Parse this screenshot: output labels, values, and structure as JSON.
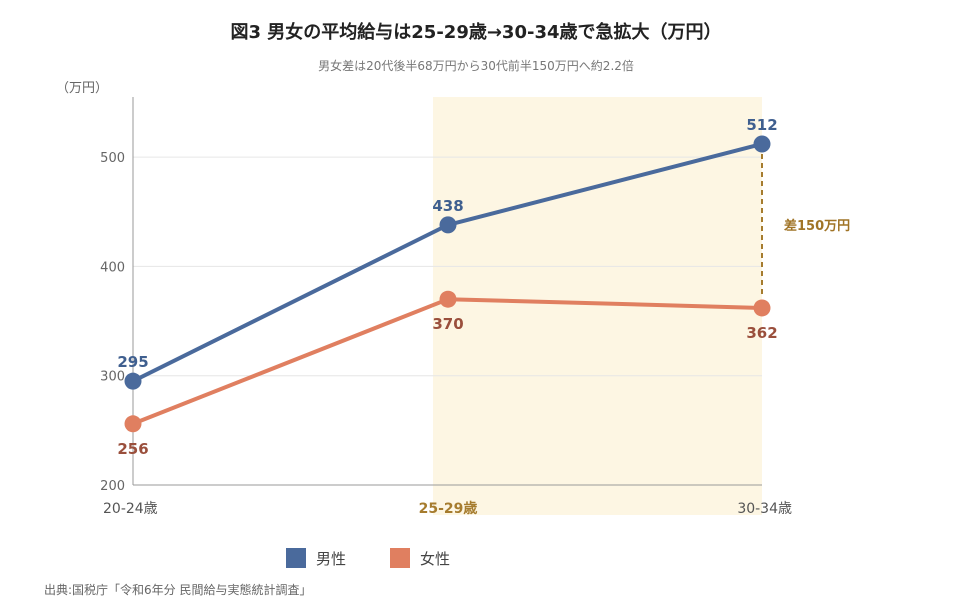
{
  "chart_data": {
    "type": "line",
    "title": "図3 男女の平均給与は25-29歳→30-34歳で急拡大（万円）",
    "subtitle": "男女差は20代後半68万円から30代前半150万円へ約2.2倍",
    "ylabel": "（万円）",
    "categories": [
      "20-24歳",
      "25-29歳",
      "30-34歳"
    ],
    "highlight_category": "25-29歳",
    "ylim": [
      200,
      555
    ],
    "yticks": [
      200,
      300,
      400,
      500
    ],
    "grid": true,
    "series": [
      {
        "name": "男性",
        "color": "#4a6a9c",
        "values": [
          295,
          438,
          512
        ],
        "labels": [
          "295",
          "438",
          "512"
        ]
      },
      {
        "name": "女性",
        "color": "#e07f60",
        "values": [
          256,
          370,
          362
        ],
        "labels": [
          "256",
          "370",
          "362"
        ]
      }
    ],
    "annotation": {
      "text": "差150万円",
      "category_index": 2,
      "color": "#a67c2e"
    },
    "highlight_color": "#fdf6e3",
    "legend_position": "bottom",
    "source": "出典:国税庁「令和6年分 民間給与実態統計調査」"
  }
}
